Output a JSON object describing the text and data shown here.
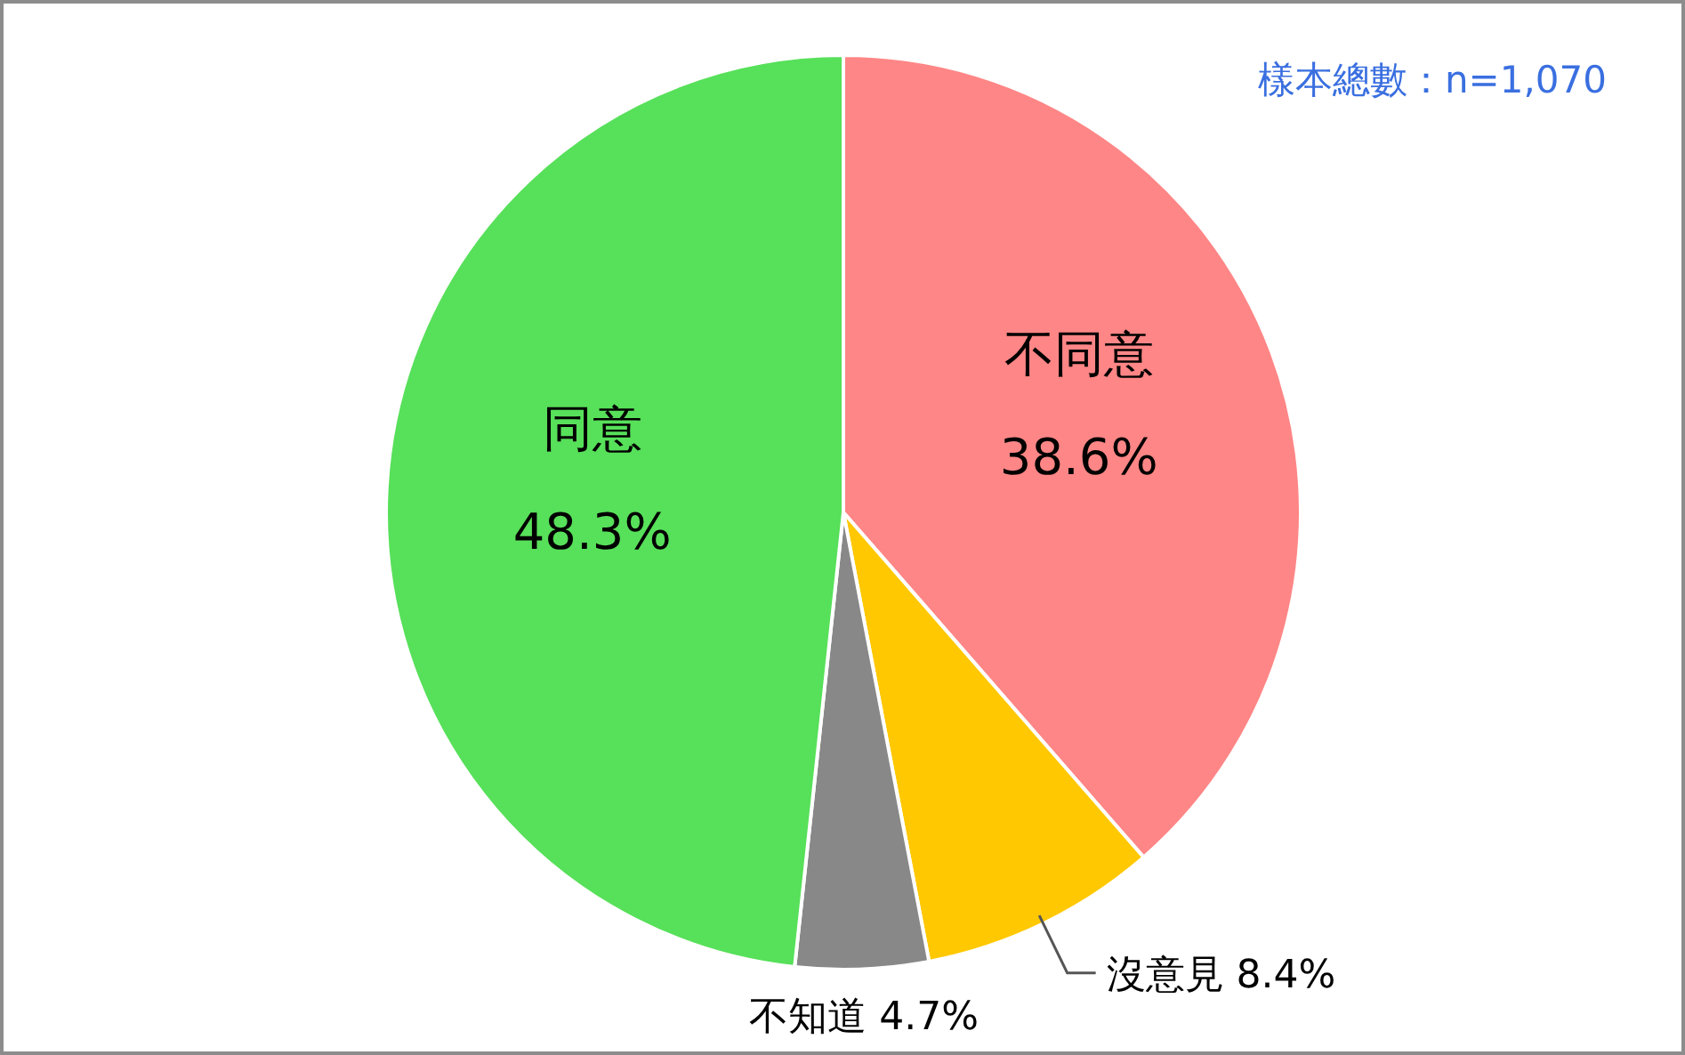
{
  "chart_data": {
    "type": "pie",
    "categories": [
      "不同意",
      "沒意見",
      "不知道",
      "同意"
    ],
    "values": [
      38.6,
      8.4,
      4.7,
      48.3
    ],
    "value_labels": [
      "38.6%",
      "8.4%",
      "4.7%",
      "48.3%"
    ],
    "colors": [
      "#ff8686",
      "#ffc800",
      "#888888",
      "#57e05a"
    ],
    "annotations": [
      "樣本總數：n=1,070"
    ]
  }
}
